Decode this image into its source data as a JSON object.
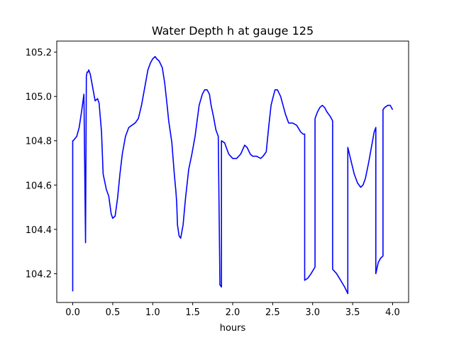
{
  "chart_data": {
    "type": "line",
    "title": "Water Depth h at gauge 125",
    "xlabel": "hours",
    "ylabel": "",
    "xlim": [
      -0.2,
      4.2
    ],
    "ylim": [
      104.07,
      105.25
    ],
    "xticks": [
      0.0,
      0.5,
      1.0,
      1.5,
      2.0,
      2.5,
      3.0,
      3.5,
      4.0
    ],
    "xtick_labels": [
      "0.0",
      "0.5",
      "1.0",
      "1.5",
      "2.0",
      "2.5",
      "3.0",
      "3.5",
      "4.0"
    ],
    "yticks": [
      104.2,
      104.4,
      104.6,
      104.8,
      105.0,
      105.2
    ],
    "ytick_labels": [
      "104.2",
      "104.4",
      "104.6",
      "104.8",
      "105.0",
      "105.2"
    ],
    "grid": false,
    "series": [
      {
        "color": "#0000ff",
        "x": [
          0.0,
          0.0,
          0.005,
          0.005,
          0.05,
          0.08,
          0.11,
          0.14,
          0.16,
          0.16,
          0.17,
          0.17,
          0.18,
          0.19,
          0.2,
          0.22,
          0.25,
          0.28,
          0.31,
          0.33,
          0.36,
          0.38,
          0.42,
          0.45,
          0.48,
          0.5,
          0.53,
          0.56,
          0.59,
          0.62,
          0.66,
          0.7,
          0.74,
          0.78,
          0.82,
          0.86,
          0.9,
          0.94,
          0.97,
          1.0,
          1.03,
          1.05,
          1.08,
          1.12,
          1.15,
          1.18,
          1.2,
          1.22,
          1.24,
          1.25,
          1.27,
          1.29,
          1.3,
          1.31,
          1.33,
          1.35,
          1.38,
          1.41,
          1.45,
          1.49,
          1.53,
          1.58,
          1.62,
          1.65,
          1.68,
          1.71,
          1.73,
          1.76,
          1.79,
          1.82,
          1.84,
          1.84,
          1.86,
          1.86,
          1.9,
          1.95,
          2.0,
          2.05,
          2.1,
          2.15,
          2.18,
          2.22,
          2.25,
          2.3,
          2.35,
          2.38,
          2.42,
          2.45,
          2.48,
          2.5,
          2.53,
          2.56,
          2.6,
          2.63,
          2.66,
          2.7,
          2.75,
          2.8,
          2.85,
          2.88,
          2.9,
          2.9,
          2.94,
          2.98,
          3.03,
          3.03,
          3.06,
          3.09,
          3.12,
          3.15,
          3.18,
          3.22,
          3.25,
          3.25,
          3.3,
          3.35,
          3.4,
          3.44,
          3.44,
          3.48,
          3.52,
          3.56,
          3.6,
          3.63,
          3.66,
          3.7,
          3.74,
          3.77,
          3.79,
          3.79,
          3.82,
          3.85,
          3.88,
          3.88,
          3.9,
          3.94,
          3.97,
          4.0
        ],
        "y": [
          104.12,
          104.8,
          104.8,
          104.8,
          104.82,
          104.86,
          104.93,
          105.01,
          104.34,
          104.37,
          105.06,
          105.09,
          105.11,
          105.11,
          105.12,
          105.1,
          105.04,
          104.98,
          104.99,
          104.97,
          104.84,
          104.65,
          104.58,
          104.55,
          104.47,
          104.45,
          104.46,
          104.54,
          104.65,
          104.74,
          104.82,
          104.86,
          104.87,
          104.88,
          104.9,
          104.96,
          105.04,
          105.12,
          105.15,
          105.17,
          105.18,
          105.17,
          105.16,
          105.13,
          105.06,
          104.96,
          104.89,
          104.84,
          104.79,
          104.74,
          104.65,
          104.57,
          104.52,
          104.42,
          104.37,
          104.36,
          104.42,
          104.54,
          104.67,
          104.74,
          104.82,
          104.96,
          105.01,
          105.03,
          105.03,
          105.01,
          104.96,
          104.91,
          104.85,
          104.82,
          104.16,
          104.15,
          104.14,
          104.8,
          104.79,
          104.74,
          104.72,
          104.72,
          104.74,
          104.78,
          104.77,
          104.74,
          104.73,
          104.73,
          104.72,
          104.73,
          104.75,
          104.86,
          104.96,
          104.99,
          105.03,
          105.03,
          105.0,
          104.96,
          104.92,
          104.88,
          104.88,
          104.87,
          104.84,
          104.83,
          104.83,
          104.17,
          104.18,
          104.2,
          104.23,
          104.9,
          104.93,
          104.95,
          104.96,
          104.95,
          104.93,
          104.91,
          104.89,
          104.22,
          104.2,
          104.17,
          104.14,
          104.11,
          104.77,
          104.71,
          104.65,
          104.61,
          104.59,
          104.6,
          104.63,
          104.7,
          104.78,
          104.84,
          104.86,
          104.2,
          104.25,
          104.27,
          104.28,
          104.94,
          104.95,
          104.96,
          104.96,
          104.94
        ]
      }
    ]
  }
}
